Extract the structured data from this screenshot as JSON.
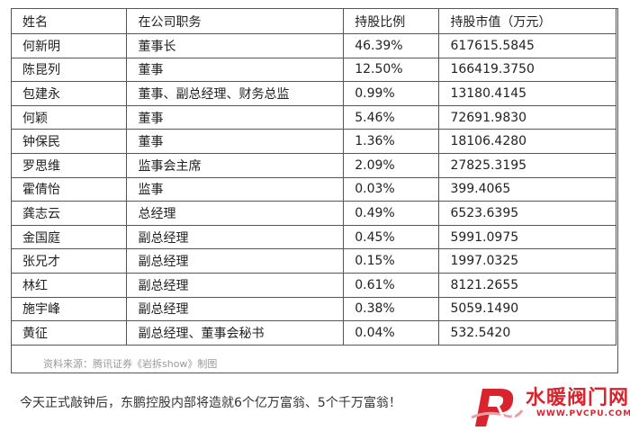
{
  "table": {
    "headers": [
      "姓名",
      "在公司职务",
      "持股比例",
      "持股市值（万元）"
    ],
    "rows": [
      [
        "何新明",
        "董事长",
        "46.39%",
        "617615.5845"
      ],
      [
        "陈昆列",
        "董事",
        "12.50%",
        "166419.3750"
      ],
      [
        "包建永",
        "董事、副总经理、财务总监",
        "0.99%",
        "13180.4145"
      ],
      [
        "何颖",
        "董事",
        "5.46%",
        "72691.9830"
      ],
      [
        "钟保民",
        "董事",
        "1.36%",
        "18106.4280"
      ],
      [
        "罗思维",
        "监事会主席",
        "2.09%",
        "27825.3195"
      ],
      [
        "霍倩怡",
        "监事",
        "0.03%",
        "399.4065"
      ],
      [
        "龚志云",
        "总经理",
        "0.49%",
        "6523.6395"
      ],
      [
        "金国庭",
        "副总经理",
        "0.45%",
        "5991.0975"
      ],
      [
        "张兄才",
        "副总经理",
        "0.15%",
        "1997.0325"
      ],
      [
        "林红",
        "副总经理",
        "0.61%",
        "8121.2655"
      ],
      [
        "施宇峰",
        "副总经理",
        "0.38%",
        "5059.1490"
      ],
      [
        "黄征",
        "副总经理、董事会秘书",
        "0.04%",
        "532.5420"
      ]
    ]
  },
  "source_note": "资料来源：腾讯证券《岩拆show》制图",
  "caption": "今天正式敲钟后，东鹏控股内部将造就6个亿万富翁、5个千万富翁！",
  "watermark": {
    "name": "水暖阀门网",
    "url": "WWW.PVCPU.COM",
    "color": "#d9232d"
  }
}
